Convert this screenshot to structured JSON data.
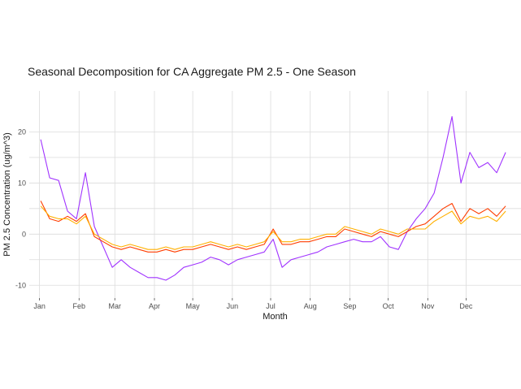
{
  "chart_data": {
    "type": "line",
    "title": "Seasonal Decomposition for CA Aggregate PM 2.5 - One Season",
    "xlabel": "Month",
    "ylabel": "PM 2.5 Concentration (ug/m^3)",
    "x_tick_labels": [
      "Jan",
      "Feb",
      "Mar",
      "Apr",
      "May",
      "Jun",
      "Jul",
      "Aug",
      "Sep",
      "Oct",
      "Nov",
      "Dec"
    ],
    "y_tick_labels": [
      "-10",
      "0",
      "10",
      "20"
    ],
    "y_ticks": [
      -10,
      0,
      10,
      20
    ],
    "ylim": [
      -12.5,
      28
    ],
    "xlim_days": [
      -8,
      377
    ],
    "grid": true,
    "legend": "none",
    "series": [
      {
        "color": "#a033ff",
        "x_day": [
          1,
          8,
          15,
          22,
          29,
          36,
          43,
          50,
          57,
          64,
          71,
          78,
          85,
          92,
          99,
          106,
          113,
          120,
          127,
          134,
          141,
          148,
          155,
          162,
          169,
          176,
          183,
          190,
          197,
          204,
          211,
          218,
          225,
          232,
          239,
          246,
          253,
          260,
          267,
          274,
          281,
          288,
          295,
          302,
          309,
          316,
          323,
          330,
          337,
          344,
          351,
          358,
          365
        ],
        "y": [
          18.5,
          11.0,
          10.5,
          4.5,
          3.0,
          12.0,
          1.5,
          -2.5,
          -6.5,
          -5.0,
          -6.5,
          -7.5,
          -8.5,
          -8.5,
          -9.0,
          -8.0,
          -6.5,
          -6.0,
          -5.5,
          -4.5,
          -5.0,
          -6.0,
          -5.0,
          -4.5,
          -4.0,
          -3.5,
          -1.0,
          -6.5,
          -5.0,
          -4.5,
          -4.0,
          -3.5,
          -2.5,
          -2.0,
          -1.5,
          -1.0,
          -1.5,
          -1.5,
          -0.5,
          -2.5,
          -3.0,
          0.5,
          3.0,
          5.0,
          8.0,
          15.0,
          23.0,
          10.0,
          16.0,
          13.0,
          14.0,
          12.0,
          16.0
        ]
      },
      {
        "color": "#ff3d00",
        "x_day": [
          1,
          8,
          15,
          22,
          29,
          36,
          43,
          50,
          57,
          64,
          71,
          78,
          85,
          92,
          99,
          106,
          113,
          120,
          127,
          134,
          141,
          148,
          155,
          162,
          169,
          176,
          183,
          190,
          197,
          204,
          211,
          218,
          225,
          232,
          239,
          246,
          253,
          260,
          267,
          274,
          281,
          288,
          295,
          302,
          309,
          316,
          323,
          330,
          337,
          344,
          351,
          358,
          365
        ],
        "y": [
          6.5,
          3.0,
          2.5,
          3.5,
          2.5,
          4.0,
          -0.5,
          -1.5,
          -2.5,
          -3.0,
          -2.5,
          -3.0,
          -3.5,
          -3.5,
          -3.0,
          -3.5,
          -3.0,
          -3.0,
          -2.5,
          -2.0,
          -2.5,
          -3.0,
          -2.5,
          -3.0,
          -2.5,
          -2.0,
          1.0,
          -2.0,
          -2.0,
          -1.5,
          -1.5,
          -1.0,
          -0.5,
          -0.5,
          1.0,
          0.5,
          0.0,
          -0.5,
          0.5,
          0.0,
          -0.5,
          0.5,
          1.5,
          2.0,
          3.5,
          5.0,
          6.0,
          2.5,
          5.0,
          4.0,
          5.0,
          3.5,
          5.5
        ]
      },
      {
        "color": "#ffb000",
        "x_day": [
          1,
          8,
          15,
          22,
          29,
          36,
          43,
          50,
          57,
          64,
          71,
          78,
          85,
          92,
          99,
          106,
          113,
          120,
          127,
          134,
          141,
          148,
          155,
          162,
          169,
          176,
          183,
          190,
          197,
          204,
          211,
          218,
          225,
          232,
          239,
          246,
          253,
          260,
          267,
          274,
          281,
          288,
          295,
          302,
          309,
          316,
          323,
          330,
          337,
          344,
          351,
          358,
          365
        ],
        "y": [
          5.5,
          3.5,
          3.0,
          3.0,
          2.0,
          3.5,
          0.0,
          -1.0,
          -2.0,
          -2.5,
          -2.0,
          -2.5,
          -3.0,
          -3.0,
          -2.5,
          -3.0,
          -2.5,
          -2.5,
          -2.0,
          -1.5,
          -2.0,
          -2.5,
          -2.0,
          -2.5,
          -2.0,
          -1.5,
          0.5,
          -1.5,
          -1.5,
          -1.0,
          -1.0,
          -0.5,
          0.0,
          0.0,
          1.5,
          1.0,
          0.5,
          0.0,
          1.0,
          0.5,
          0.0,
          1.0,
          1.0,
          1.0,
          2.5,
          3.5,
          4.5,
          2.0,
          3.5,
          3.0,
          3.5,
          2.5,
          4.5
        ]
      }
    ]
  }
}
